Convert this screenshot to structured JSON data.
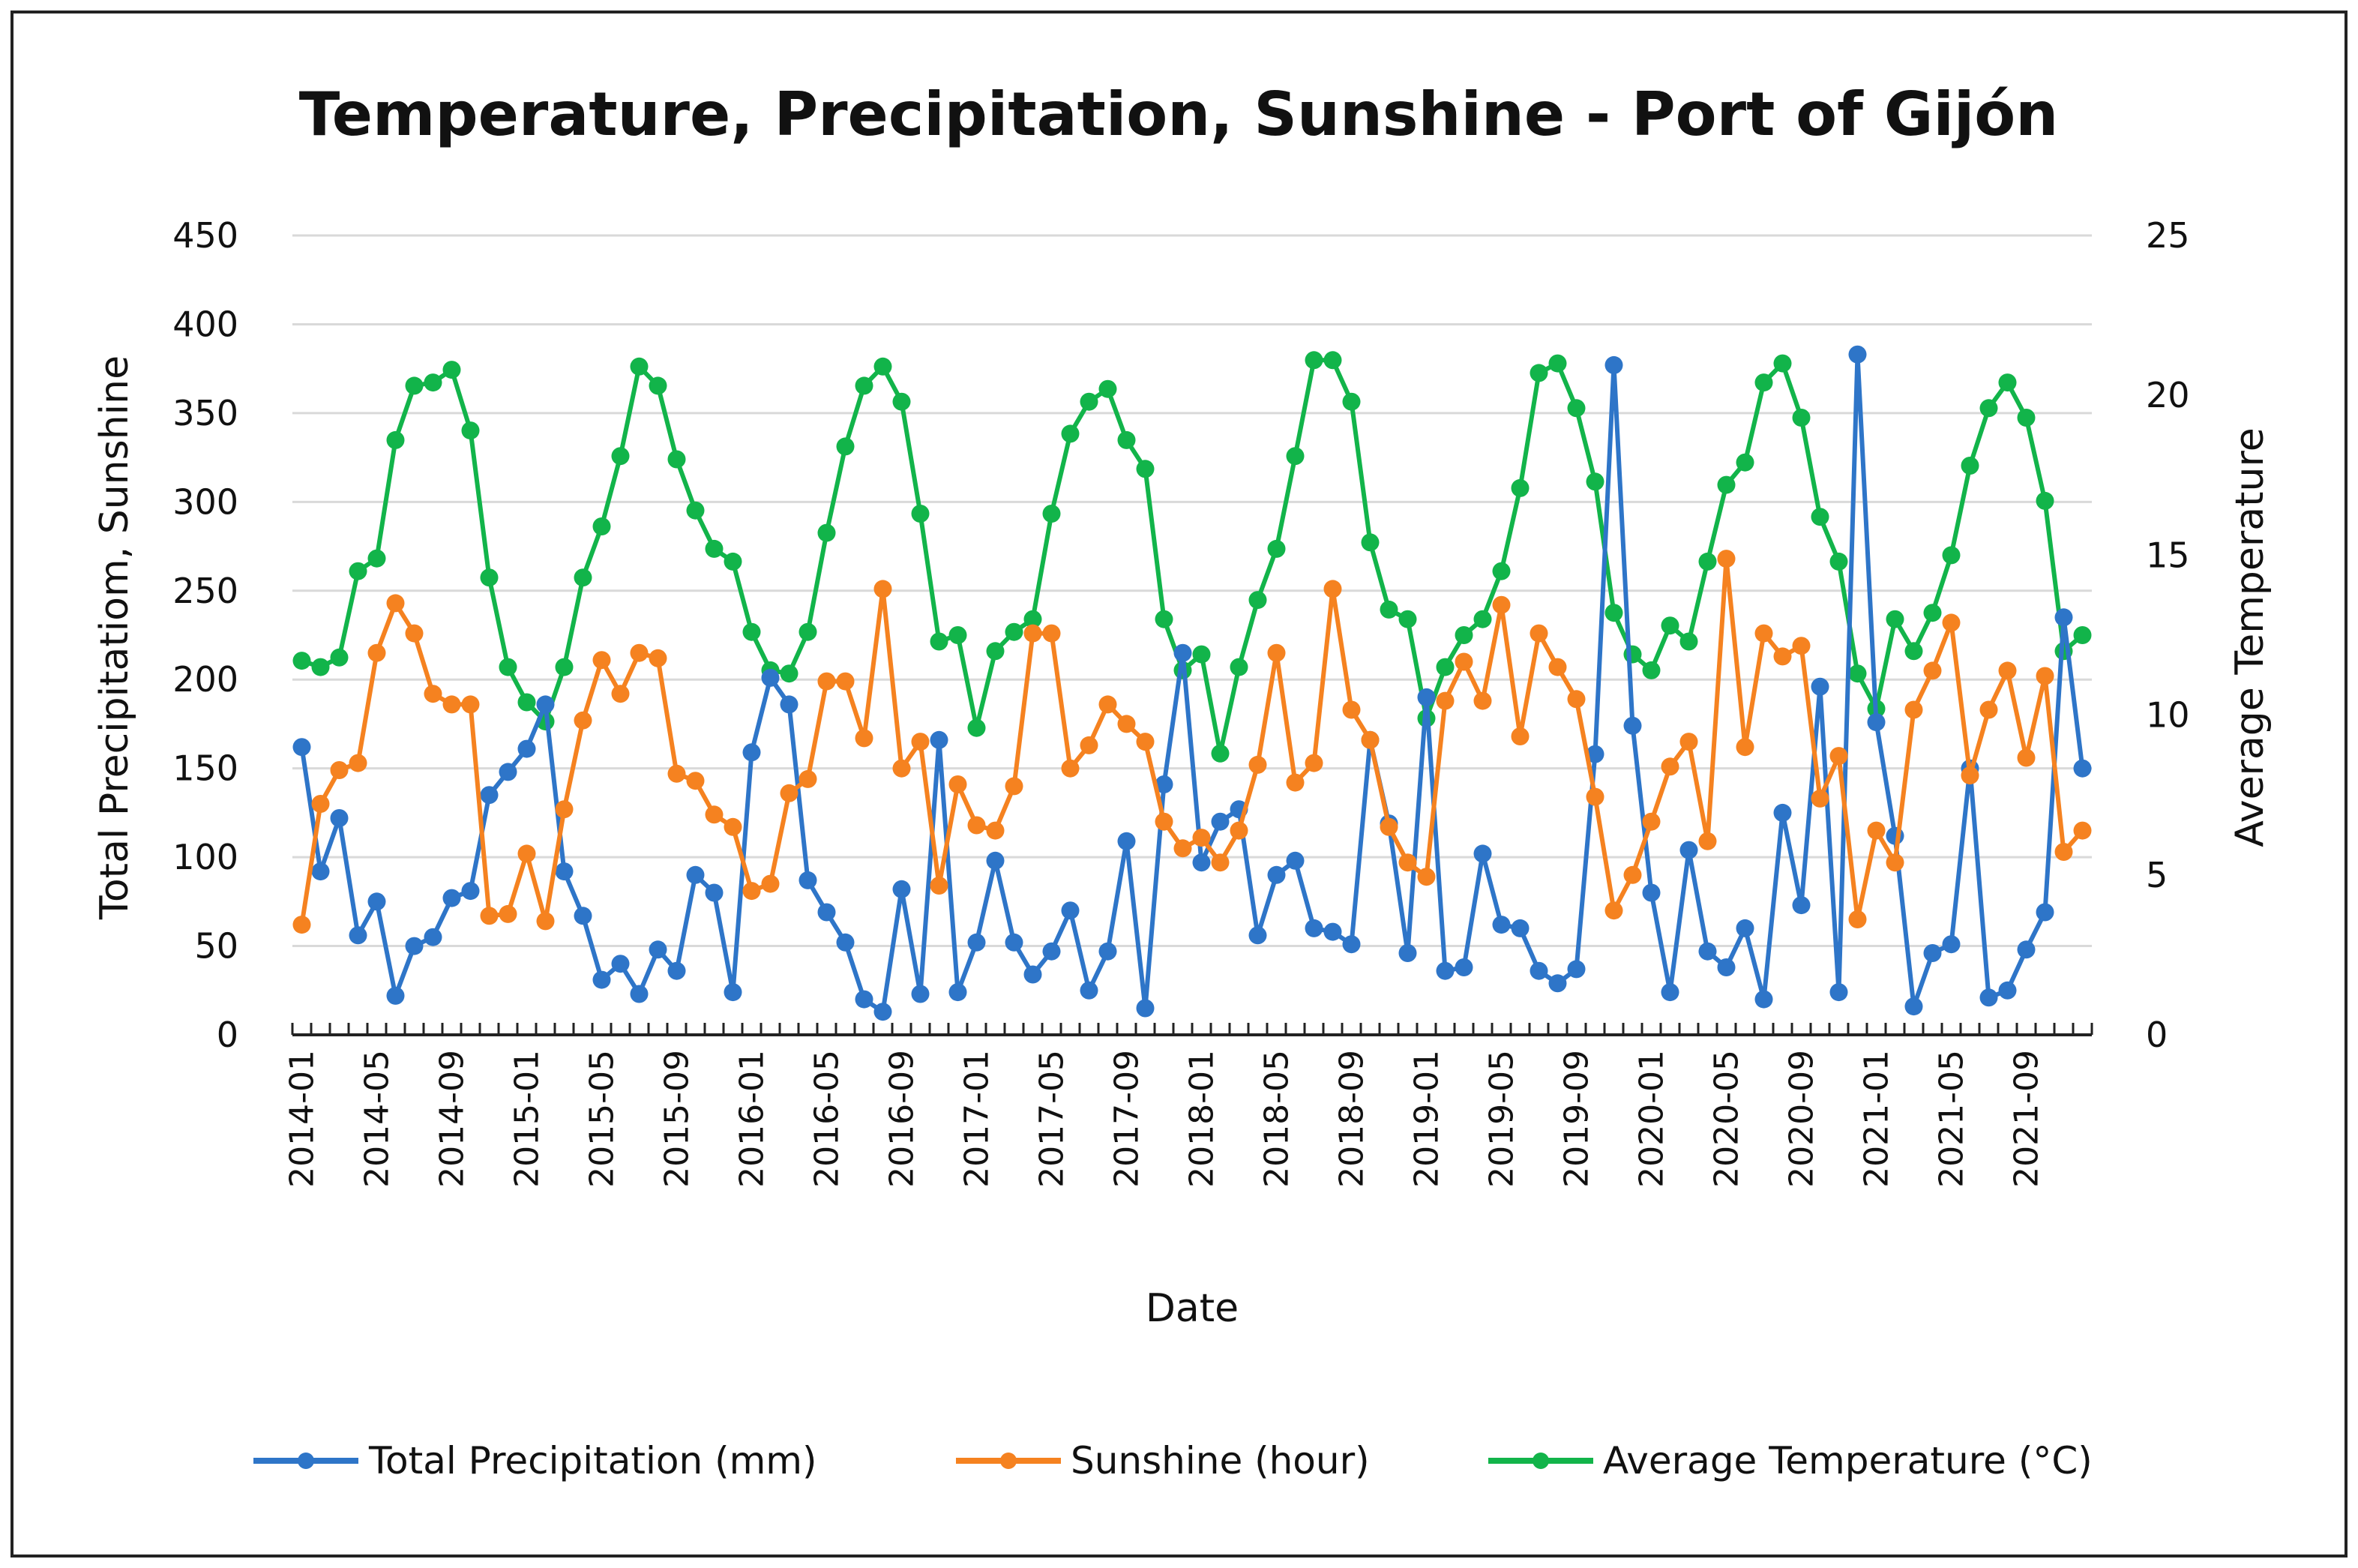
{
  "chart_data": {
    "type": "line",
    "title": "Temperature, Precipitation, Sunshine - Port of Gijón",
    "xlabel": "Date",
    "ylabel_left": "Total Precipitatiom, Sunshine",
    "ylabel_right": "Average Temperature",
    "ylim_left": [
      0,
      450
    ],
    "ylim_right": [
      0,
      25
    ],
    "yticks_left": [
      "0",
      "50",
      "100",
      "150",
      "200",
      "250",
      "300",
      "350",
      "400",
      "450"
    ],
    "yticks_right": [
      "0",
      "5",
      "10",
      "15",
      "20",
      "25"
    ],
    "grid": true,
    "legend_position": "bottom",
    "colors": {
      "precipitation": "#2e75c8",
      "sunshine": "#f58220",
      "temperature": "#12b44a",
      "grid": "#d9d9d9",
      "axis": "#222222"
    },
    "x_tick_labels": [
      "2014-01",
      "2014-05",
      "2014-09",
      "2015-01",
      "2015-05",
      "2015-09",
      "2016-01",
      "2016-05",
      "2016-09",
      "2017-01",
      "2017-05",
      "2017-09",
      "2018-01",
      "2018-05",
      "2018-09",
      "2019-01",
      "2019-05",
      "2019-09",
      "2020-01",
      "2020-05",
      "2020-09",
      "2021-01",
      "2021-05",
      "2021-09"
    ],
    "months_count": 96,
    "series": [
      {
        "name": "Total Precipitation (mm)",
        "axis": "left",
        "color": "#2e75c8",
        "values": [
          162,
          92,
          122,
          56,
          75,
          22,
          50,
          55,
          77,
          81,
          135,
          148,
          161,
          186,
          92,
          67,
          31,
          40,
          23,
          48,
          36,
          90,
          80,
          24,
          159,
          201,
          186,
          87,
          69,
          52,
          20,
          13,
          82,
          23,
          166,
          24,
          52,
          98,
          52,
          34,
          47,
          70,
          25,
          47,
          109,
          15,
          141,
          215,
          97,
          120,
          127,
          56,
          90,
          98,
          60,
          58,
          51,
          166,
          119,
          46,
          190,
          36,
          38,
          102,
          62,
          60,
          36,
          29,
          37,
          158,
          377,
          174,
          80,
          24,
          104,
          47,
          38,
          60,
          20,
          125,
          73,
          196,
          24,
          383,
          176,
          112,
          16,
          46,
          51,
          150,
          21,
          25,
          48,
          69,
          235,
          150
        ]
      },
      {
        "name": "Sunshine (hour)",
        "axis": "left",
        "color": "#f58220",
        "values": [
          62,
          130,
          149,
          153,
          215,
          243,
          226,
          192,
          186,
          186,
          67,
          68,
          102,
          64,
          127,
          177,
          211,
          192,
          215,
          212,
          147,
          143,
          124,
          117,
          81,
          85,
          136,
          144,
          199,
          199,
          167,
          251,
          150,
          165,
          84,
          141,
          118,
          115,
          140,
          226,
          226,
          150,
          163,
          186,
          175,
          165,
          120,
          105,
          111,
          97,
          115,
          152,
          215,
          142,
          153,
          251,
          183,
          166,
          117,
          97,
          89,
          188,
          210,
          188,
          242,
          168,
          226,
          207,
          189,
          134,
          70,
          90,
          120,
          151,
          165,
          109,
          268,
          162,
          226,
          213,
          219,
          133,
          157,
          65,
          115,
          97,
          183,
          205,
          232,
          146,
          183,
          205,
          156,
          202,
          103,
          115
        ]
      },
      {
        "name": "Average Temperature (°C)",
        "axis": "left_scaled_by_right_axis",
        "color": "#12b44a",
        "values": [
          11.7,
          11.5,
          11.8,
          14.5,
          14.9,
          18.6,
          20.3,
          20.4,
          20.8,
          18.9,
          14.3,
          11.5,
          10.4,
          9.8,
          11.5,
          14.3,
          15.9,
          18.1,
          20.9,
          20.3,
          18.0,
          16.4,
          15.2,
          14.8,
          12.6,
          11.4,
          11.3,
          12.6,
          15.7,
          18.4,
          20.3,
          20.9,
          19.8,
          16.3,
          12.3,
          12.5,
          9.6,
          12.0,
          12.6,
          13.0,
          16.3,
          18.8,
          19.8,
          20.2,
          18.6,
          17.7,
          13.0,
          11.4,
          11.9,
          8.8,
          11.5,
          13.6,
          15.2,
          18.1,
          21.1,
          21.1,
          19.8,
          15.4,
          13.3,
          13.0,
          9.9,
          11.5,
          12.5,
          13.0,
          14.5,
          17.1,
          20.7,
          21.0,
          19.6,
          17.3,
          13.2,
          11.9,
          11.4,
          12.8,
          12.3,
          14.8,
          17.2,
          17.9,
          20.4,
          21.0,
          19.3,
          16.2,
          14.8,
          11.3,
          10.2,
          13.0,
          12.0,
          13.2,
          15.0,
          17.8,
          19.6,
          20.4,
          19.3,
          16.7,
          12.0,
          12.5
        ]
      }
    ],
    "legend": [
      {
        "label": "Total Precipitation (mm)",
        "color": "#2e75c8"
      },
      {
        "label": "Sunshine (hour)",
        "color": "#f58220"
      },
      {
        "label": "Average Temperature (°C)",
        "color": "#12b44a"
      }
    ]
  }
}
